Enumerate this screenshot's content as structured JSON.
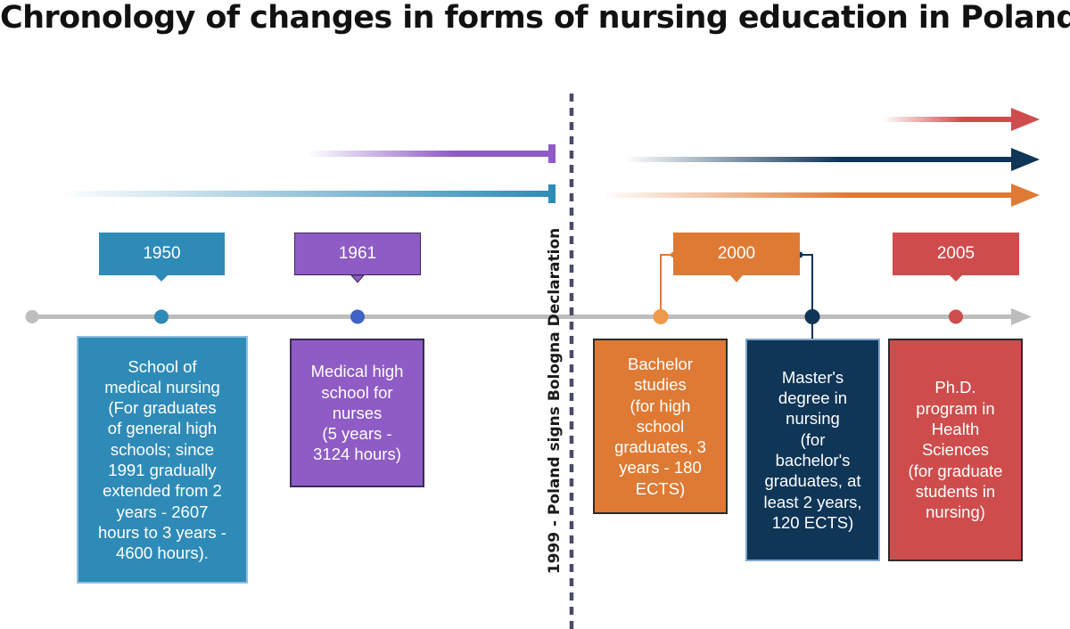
{
  "title": "Chronology of changes in forms of nursing education in Poland",
  "divider_label": "1999 - Poland signs Bologna Declaration",
  "colors": {
    "teal": "#2e8bb7",
    "purple": "#8e5cc4",
    "orange": "#de7a33",
    "navy": "#0f3557",
    "red": "#cf4c4c",
    "axis": "#bdbdbd",
    "divider": "#4a4a6a"
  },
  "milestones": [
    {
      "id": "m1950",
      "year": "1950",
      "color": "#2e8bb7",
      "text": "School of\nmedical nursing\n(For graduates\nof general high\nschools; since\n1991 gradually\nextended from 2\nyears - 2607\nhours to 3 years -\n4600 hours)."
    },
    {
      "id": "m1961",
      "year": "1961",
      "color": "#8e5cc4",
      "text": "Medical high\nschool for\nnurses\n(5 years -\n3124 hours)"
    },
    {
      "id": "m2000a",
      "year": "2000",
      "color": "#de7a33",
      "text": "Bachelor\nstudies\n(for high\nschool\ngraduates, 3\nyears - 180\nECTS)"
    },
    {
      "id": "m2000b",
      "year": "",
      "color": "#0f3557",
      "text": "Master's\ndegree in\nnursing\n(for\nbachelor's\ngraduates, at\nleast 2 years,\n120 ECTS)"
    },
    {
      "id": "m2005",
      "year": "2005",
      "color": "#cf4c4c",
      "text": "Ph.D.\nprogram in\nHealth\nSciences\n(for graduate\nstudents in\nnursing)"
    }
  ]
}
